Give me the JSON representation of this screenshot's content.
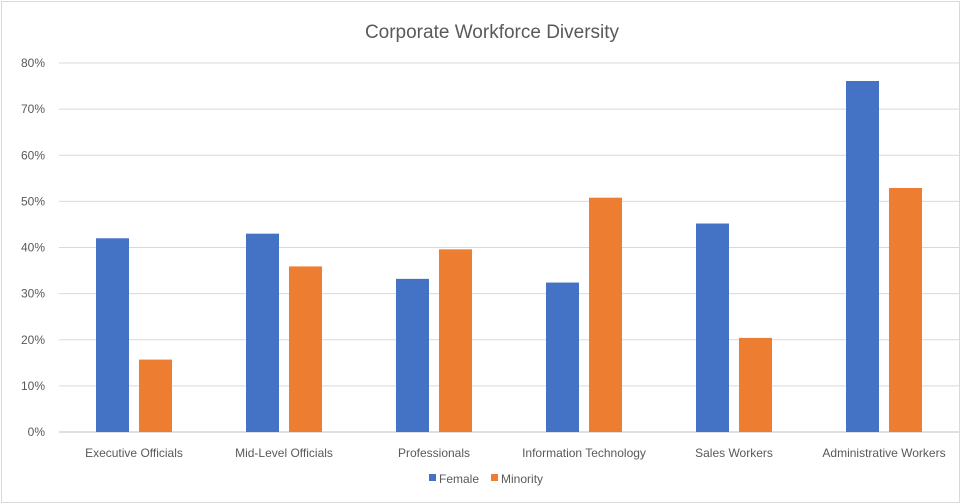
{
  "chart_data": {
    "type": "bar",
    "title": "Corporate Workforce Diversity",
    "xlabel": "",
    "ylabel": "",
    "categories": [
      "Executive Officials",
      "Mid-Level Officials",
      "Professionals",
      "Information Technology",
      "Sales Workers",
      "Administrative Workers"
    ],
    "series": [
      {
        "name": "Female",
        "color": "#4472c4",
        "values": [
          42,
          43,
          33.2,
          32.4,
          45.2,
          76.1
        ]
      },
      {
        "name": "Minority",
        "color": "#ed7d31",
        "values": [
          15.7,
          35.9,
          39.6,
          50.8,
          20.4,
          52.9
        ]
      }
    ],
    "ylim": [
      0,
      80
    ],
    "yticks": [
      0,
      10,
      20,
      30,
      40,
      50,
      60,
      70,
      80
    ],
    "tick_format": "percent",
    "grid": true,
    "legend_position": "bottom"
  }
}
